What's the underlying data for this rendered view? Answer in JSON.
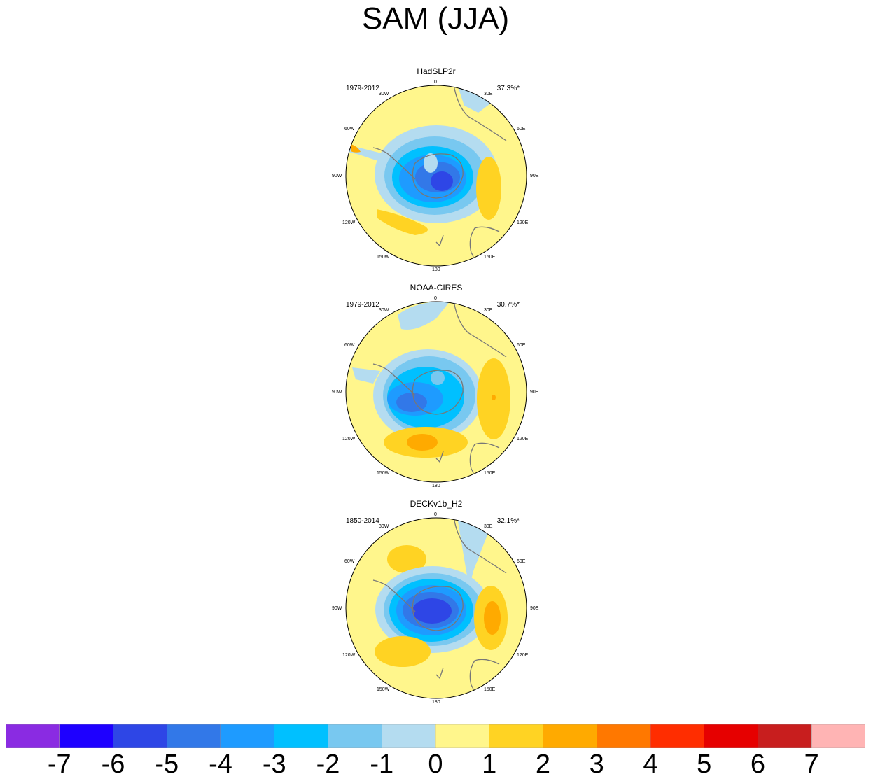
{
  "title": "SAM (JJA)",
  "panels": [
    {
      "name": "HadSLP2r",
      "period": "1979-2012",
      "variance": "37.3%*"
    },
    {
      "name": "NOAA-CIRES",
      "period": "1979-2012",
      "variance": "30.7%*"
    },
    {
      "name": "DECKv1b_H2",
      "period": "1850-2014",
      "variance": "32.1%*"
    }
  ],
  "longitude_labels": [
    "0",
    "30E",
    "60E",
    "90E",
    "120E",
    "150E",
    "180",
    "150W",
    "120W",
    "90W",
    "60W",
    "30W"
  ],
  "colorbar": {
    "levels": [
      "-7",
      "-6",
      "-5",
      "-4",
      "-3",
      "-2",
      "-1",
      "0",
      "1",
      "2",
      "3",
      "4",
      "5",
      "6",
      "7"
    ],
    "colors": [
      "#8a2be2",
      "#1e00ff",
      "#2e46e6",
      "#3278e8",
      "#1e9bff",
      "#00c0ff",
      "#78c8f0",
      "#b4dcf0",
      "#fff68c",
      "#ffd323",
      "#ffaa00",
      "#ff7800",
      "#ff2d00",
      "#e60000",
      "#c81e1e",
      "#ffb4b4"
    ]
  }
}
